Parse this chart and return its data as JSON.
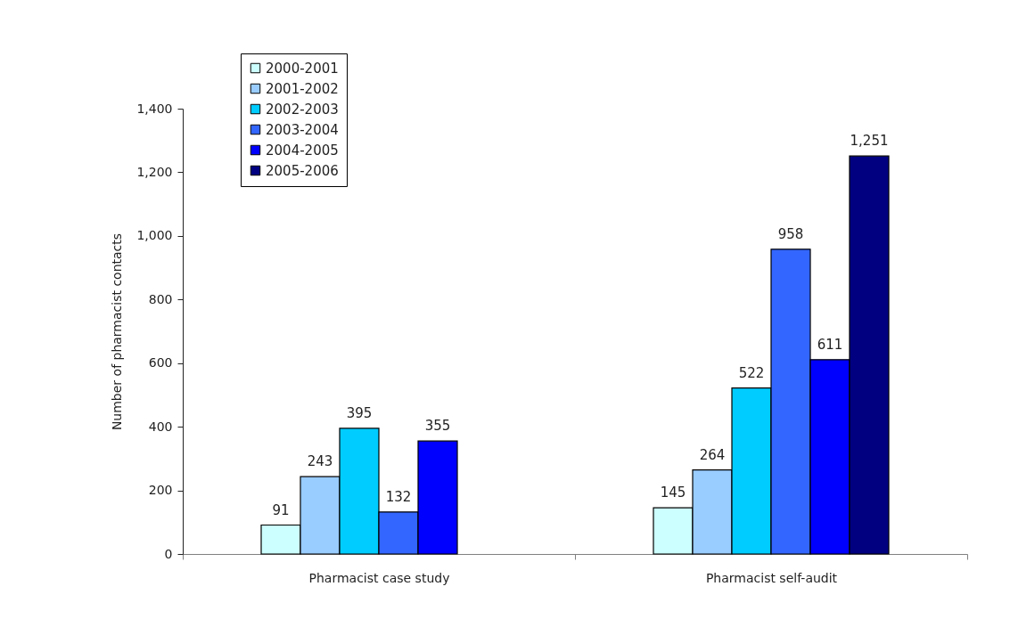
{
  "chart_data": {
    "type": "bar",
    "ylabel": "Number of pharmacist contacts",
    "categories": [
      "Pharmacist case study",
      "Pharmacist self-audit"
    ],
    "series": [
      {
        "name": "2000-2001",
        "color": "#ccffff",
        "values": [
          91,
          145
        ],
        "value_labels": [
          "91",
          "145"
        ]
      },
      {
        "name": "2001-2002",
        "color": "#99ccff",
        "values": [
          243,
          264
        ],
        "value_labels": [
          "243",
          "264"
        ]
      },
      {
        "name": "2002-2003",
        "color": "#00ccff",
        "values": [
          395,
          522
        ],
        "value_labels": [
          "395",
          "522"
        ]
      },
      {
        "name": "2003-2004",
        "color": "#3366ff",
        "values": [
          132,
          958
        ],
        "value_labels": [
          "132",
          "958"
        ]
      },
      {
        "name": "2004-2005",
        "color": "#0000ff",
        "values": [
          355,
          611
        ],
        "value_labels": [
          "355",
          "611"
        ]
      },
      {
        "name": "2005-2006",
        "color": "#000080",
        "values": [
          null,
          1251
        ],
        "value_labels": [
          null,
          "1,251"
        ]
      }
    ],
    "ylim": [
      0,
      1400
    ],
    "yticks": [
      0,
      200,
      400,
      600,
      800,
      {
        "value": 1000,
        "label": "1,000"
      },
      {
        "value": 1200,
        "label": "1,200"
      },
      {
        "value": 1400,
        "label": "1,400"
      }
    ],
    "legend": "top left"
  }
}
